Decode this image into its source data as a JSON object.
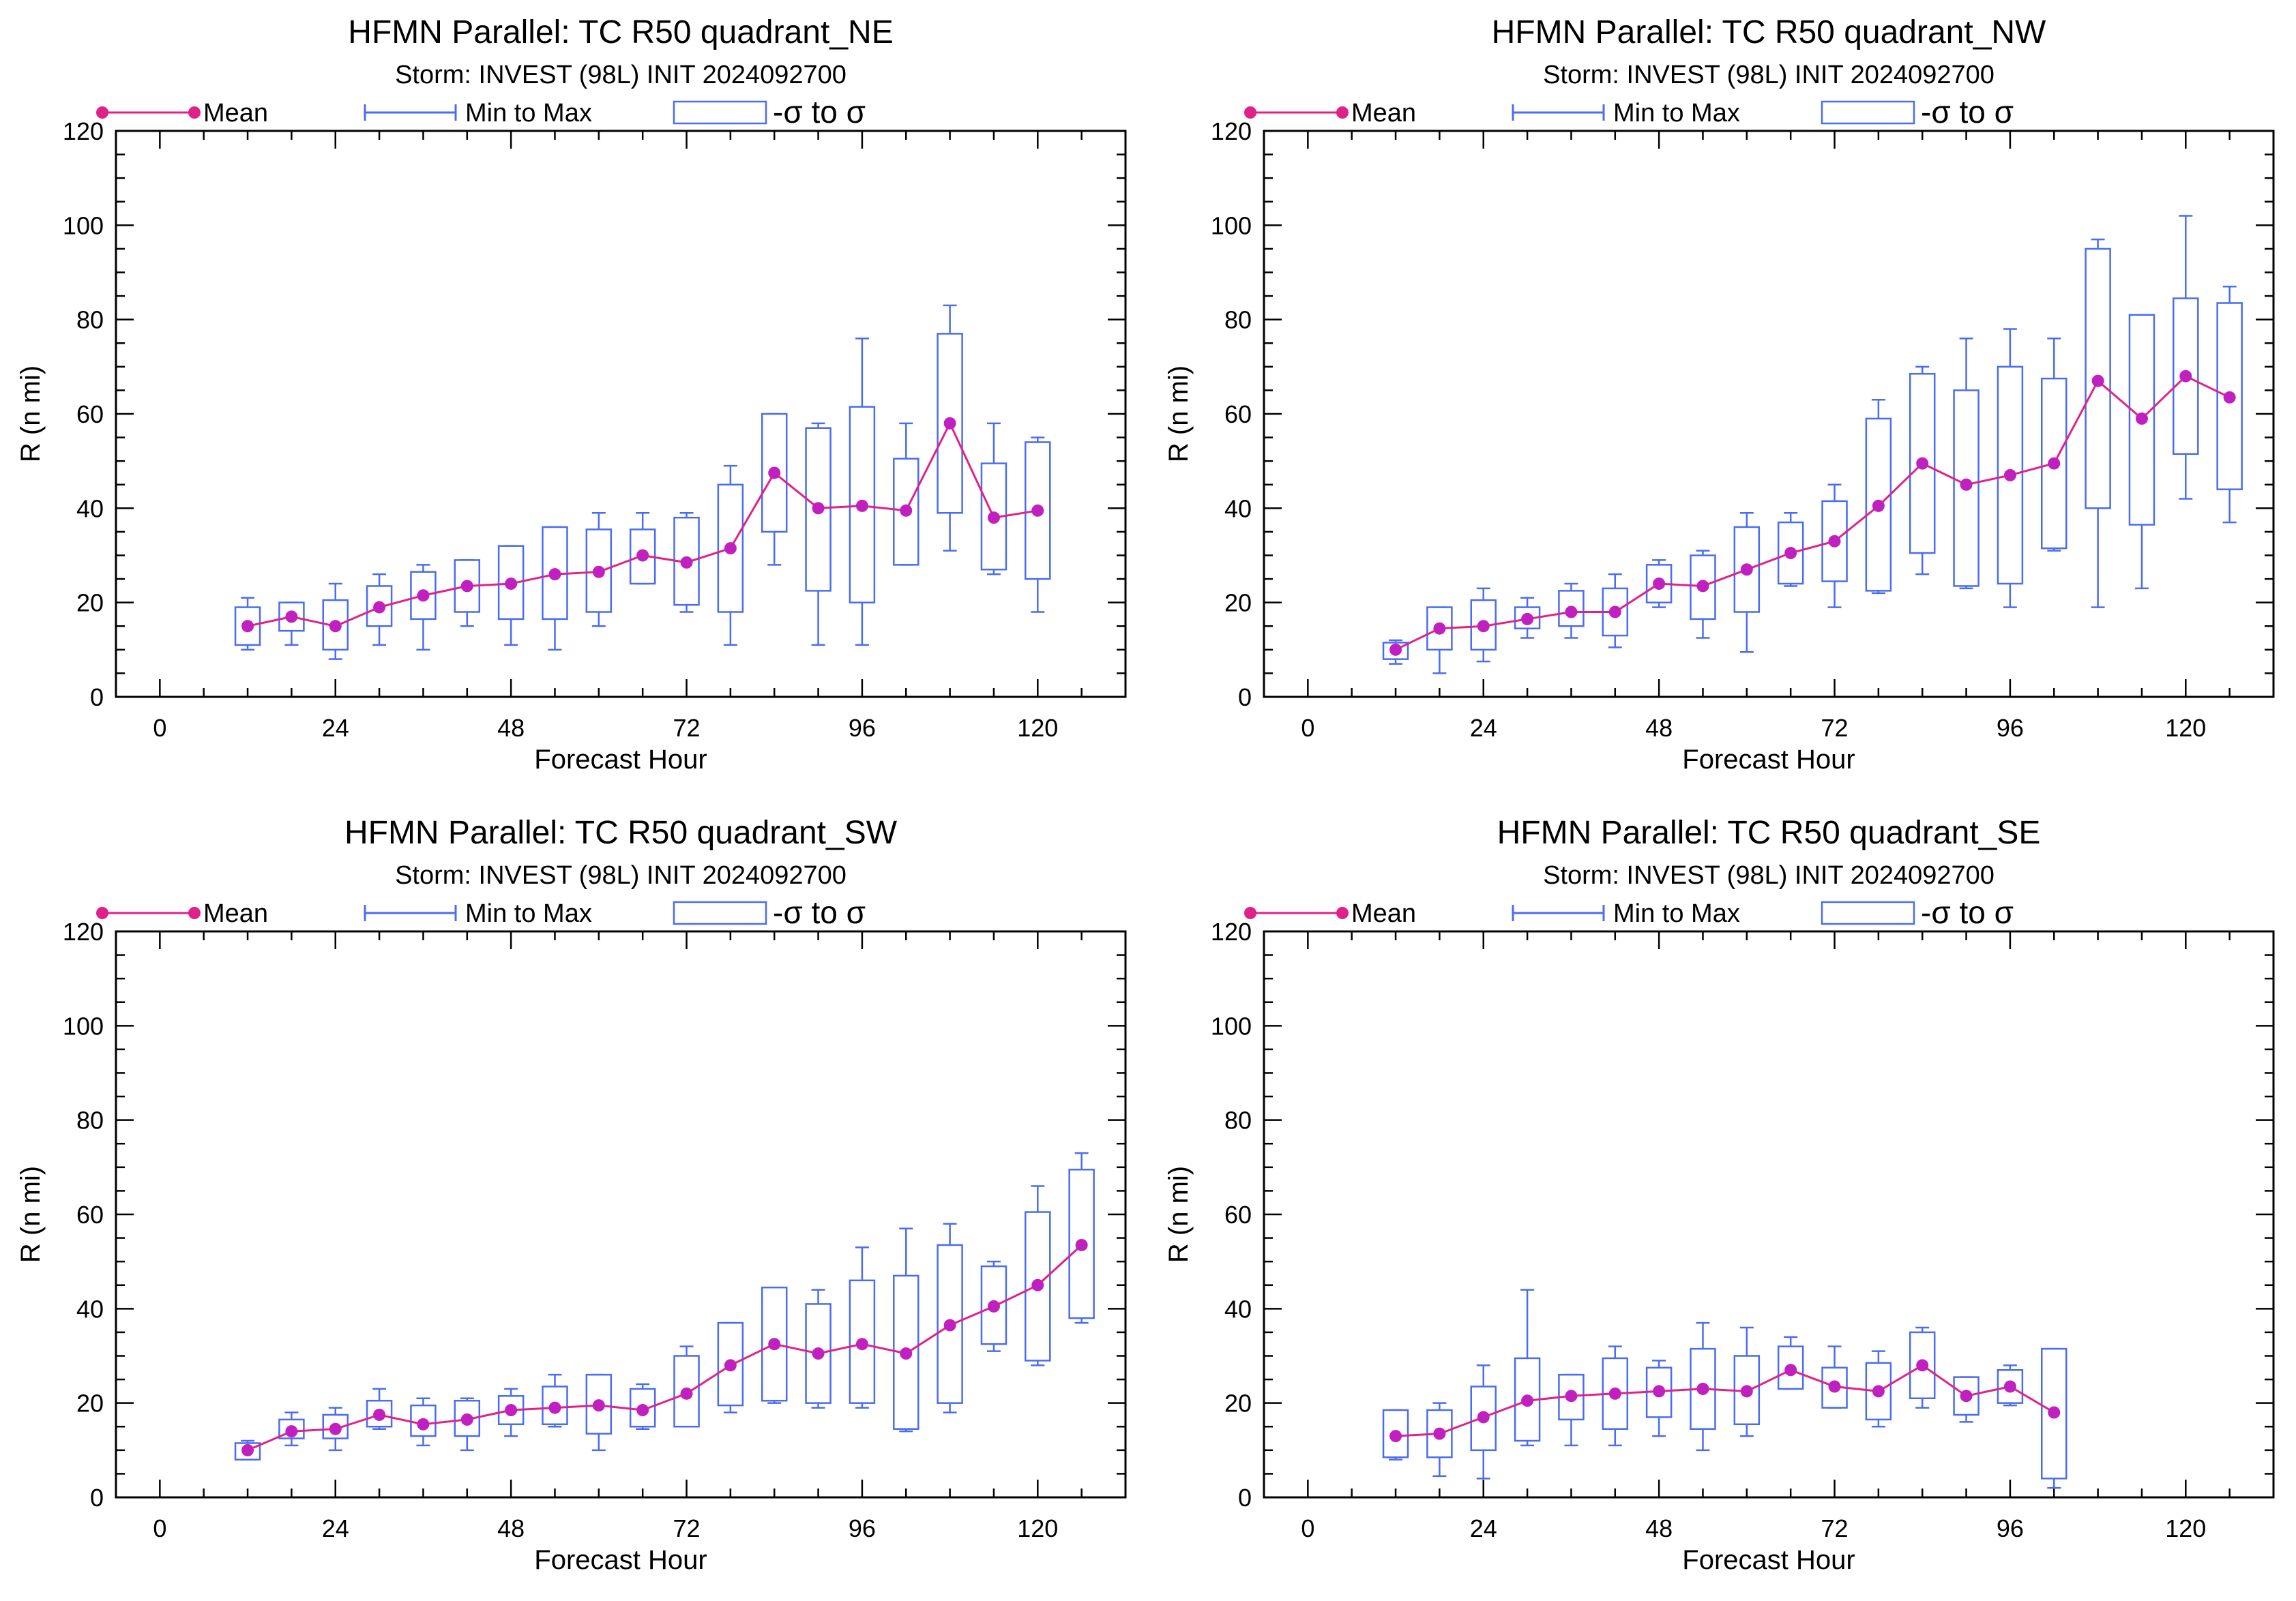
{
  "colors": {
    "mean": "#e0218a",
    "mean_marker": "#c020c0",
    "box": "#4a6cf0",
    "axis": "#000000"
  },
  "legend": {
    "mean": "Mean",
    "range": "Min to Max",
    "sigma": "-σ to σ"
  },
  "chart_data": [
    {
      "type": "box",
      "title": "HFMN Parallel: TC  R50 quadrant_NE",
      "subtitle": "Storm: INVEST (98L) INIT 2024092700",
      "xlabel": "Forecast Hour",
      "ylabel": "R (n mi)",
      "xlim": [
        -6,
        132
      ],
      "ylim": [
        0,
        120
      ],
      "xticks": [
        0,
        24,
        48,
        72,
        96,
        120
      ],
      "yticks": [
        0,
        20,
        40,
        60,
        80,
        100,
        120
      ],
      "x": [
        12,
        18,
        24,
        30,
        36,
        42,
        48,
        54,
        60,
        66,
        72,
        78,
        84,
        90,
        96,
        102,
        108,
        114,
        120
      ],
      "mean": [
        15,
        17,
        15,
        19,
        21.5,
        23.5,
        24,
        26,
        26.5,
        30,
        28.5,
        31.5,
        47.5,
        40,
        40.5,
        39.5,
        58,
        38,
        39.5
      ],
      "min": [
        10,
        11,
        8,
        11,
        10,
        15,
        11,
        10,
        15,
        24,
        18,
        11,
        28,
        11,
        11,
        28,
        31,
        26,
        18
      ],
      "max": [
        21,
        20,
        24,
        26,
        28,
        29,
        32,
        36,
        39,
        39,
        39,
        49,
        60,
        58,
        76,
        58,
        83,
        58,
        55
      ],
      "sigma_low": [
        11,
        14,
        10,
        15,
        16.5,
        18,
        16.5,
        16.5,
        18,
        24,
        19.5,
        18,
        35,
        22.5,
        20,
        28,
        39,
        27,
        25
      ],
      "sigma_high": [
        19,
        20,
        20.5,
        23.5,
        26.5,
        29,
        32,
        36,
        35.5,
        35.5,
        38,
        45,
        60,
        57,
        61.5,
        50.5,
        77,
        49.5,
        54
      ]
    },
    {
      "type": "box",
      "title": "HFMN Parallel: TC  R50 quadrant_NW",
      "subtitle": "Storm: INVEST (98L) INIT 2024092700",
      "xlabel": "Forecast Hour",
      "ylabel": "R (n mi)",
      "xlim": [
        -6,
        132
      ],
      "ylim": [
        0,
        120
      ],
      "xticks": [
        0,
        24,
        48,
        72,
        96,
        120
      ],
      "yticks": [
        0,
        20,
        40,
        60,
        80,
        100,
        120
      ],
      "x": [
        12,
        18,
        24,
        30,
        36,
        42,
        48,
        54,
        60,
        66,
        72,
        78,
        84,
        90,
        96,
        102,
        108,
        114,
        120,
        126
      ],
      "mean": [
        10,
        14.5,
        15,
        16.5,
        18,
        18,
        24,
        23.5,
        27,
        30.5,
        33,
        40.5,
        49.5,
        45,
        47,
        49.5,
        67,
        59,
        68,
        63.5
      ],
      "min": [
        7,
        5,
        7.5,
        12.5,
        12.5,
        10.5,
        19,
        12.5,
        9.5,
        23.5,
        19,
        22,
        26,
        23,
        19,
        31,
        19,
        23,
        42,
        37
      ],
      "max": [
        12,
        19,
        23,
        21,
        24,
        26,
        29,
        31,
        39,
        39,
        45,
        63,
        70,
        76,
        78,
        76,
        97,
        81,
        102,
        87
      ],
      "sigma_low": [
        8,
        10,
        10,
        14.5,
        15,
        13,
        20,
        16.5,
        18,
        24,
        24.5,
        22.5,
        30.5,
        23.5,
        24,
        31.5,
        40,
        36.5,
        51.5,
        44
      ],
      "sigma_high": [
        11.5,
        19,
        20.5,
        19,
        22.5,
        23,
        28,
        30,
        36,
        37,
        41.5,
        59,
        68.5,
        65,
        70,
        67.5,
        95,
        81,
        84.5,
        83.5
      ]
    },
    {
      "type": "box",
      "title": "HFMN Parallel: TC  R50 quadrant_SW",
      "subtitle": "Storm: INVEST (98L) INIT 2024092700",
      "xlabel": "Forecast Hour",
      "ylabel": "R (n mi)",
      "xlim": [
        -6,
        132
      ],
      "ylim": [
        0,
        120
      ],
      "xticks": [
        0,
        24,
        48,
        72,
        96,
        120
      ],
      "yticks": [
        0,
        20,
        40,
        60,
        80,
        100,
        120
      ],
      "x": [
        12,
        18,
        24,
        30,
        36,
        42,
        48,
        54,
        60,
        66,
        72,
        78,
        84,
        90,
        96,
        102,
        108,
        114,
        120,
        126
      ],
      "mean": [
        10,
        14,
        14.5,
        17.5,
        15.5,
        16.5,
        18.5,
        19,
        19.5,
        18.5,
        22,
        28,
        32.5,
        30.5,
        32.5,
        30.5,
        36.5,
        40.5,
        45,
        53.5
      ],
      "min": [
        8,
        11,
        10,
        14.5,
        11,
        10,
        13,
        15,
        10,
        14.5,
        15,
        18,
        20,
        19,
        19,
        14,
        18,
        31,
        28,
        37
      ],
      "max": [
        12,
        18,
        19,
        23,
        21,
        21,
        23,
        26,
        26,
        24,
        32,
        37,
        44.5,
        44,
        53,
        57,
        58,
        50,
        66,
        73
      ],
      "sigma_low": [
        8,
        12.5,
        12.5,
        15,
        13,
        13,
        15.5,
        15.5,
        13.5,
        15,
        15,
        19.5,
        20.5,
        20,
        20,
        14.5,
        20,
        32.5,
        29,
        38
      ],
      "sigma_high": [
        11.5,
        16.5,
        17.5,
        20.5,
        19.5,
        20.5,
        21.5,
        23.5,
        26,
        23,
        30,
        37,
        44.5,
        41,
        46,
        47,
        53.5,
        49,
        60.5,
        69.5
      ]
    },
    {
      "type": "box",
      "title": "HFMN Parallel: TC  R50 quadrant_SE",
      "subtitle": "Storm: INVEST (98L) INIT 2024092700",
      "xlabel": "Forecast Hour",
      "ylabel": "R (n mi)",
      "xlim": [
        -6,
        132
      ],
      "ylim": [
        0,
        120
      ],
      "xticks": [
        0,
        24,
        48,
        72,
        96,
        120
      ],
      "yticks": [
        0,
        20,
        40,
        60,
        80,
        100,
        120
      ],
      "x": [
        12,
        18,
        24,
        30,
        36,
        42,
        48,
        54,
        60,
        66,
        72,
        78,
        84,
        90,
        96,
        102
      ],
      "mean": [
        13,
        13.5,
        17,
        20.5,
        21.5,
        22,
        22.5,
        23,
        22.5,
        27,
        23.5,
        22.5,
        28,
        21.5,
        23.5,
        18
      ],
      "min": [
        8,
        4.5,
        4,
        11,
        11,
        11,
        13,
        10,
        13,
        23,
        19,
        15,
        19,
        16,
        19.5,
        2
      ],
      "max": [
        18.5,
        20,
        28,
        44,
        26,
        32,
        29,
        37,
        36,
        34,
        32,
        31,
        36,
        25.5,
        28,
        31.5
      ],
      "sigma_low": [
        8.5,
        8.5,
        10,
        12,
        16.5,
        14.5,
        17,
        14.5,
        15.5,
        23,
        19,
        16.5,
        21,
        17.5,
        20,
        4
      ],
      "sigma_high": [
        18.5,
        18.5,
        23.5,
        29.5,
        26,
        29.5,
        27.5,
        31.5,
        30,
        32,
        27.5,
        28.5,
        35,
        25.5,
        27,
        31.5
      ]
    }
  ]
}
